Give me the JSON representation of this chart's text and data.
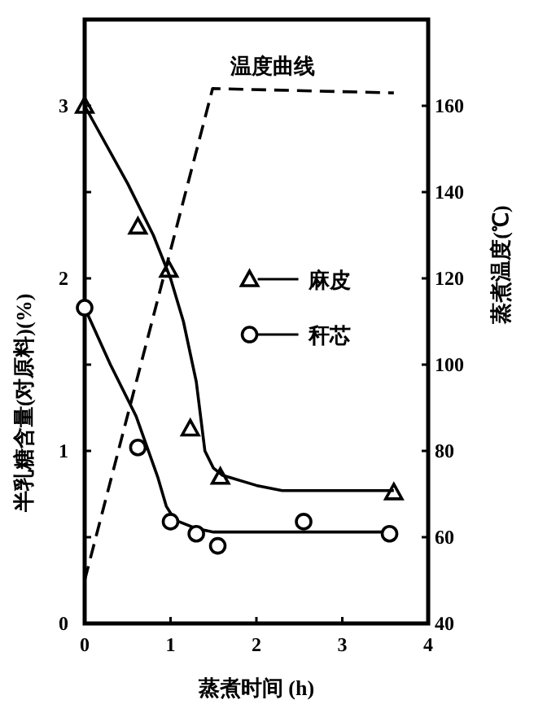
{
  "chart_data": {
    "type": "line",
    "xlabel": "蒸煮时间 (h)",
    "ylabel": "半乳糖含量(对原料)(%)",
    "y2label": "蒸煮温度(℃)",
    "xlim": [
      0,
      4
    ],
    "xticks": [
      0,
      1,
      2,
      3,
      4
    ],
    "ylim": [
      0,
      3.5
    ],
    "yticks": [
      0,
      {
        "value": 0.5,
        "label": null
      },
      1,
      {
        "value": 1.5,
        "label": null
      },
      2,
      {
        "value": 2.5,
        "label": null
      },
      3
    ],
    "y2lim": [
      40,
      180
    ],
    "y2ticks": [
      40,
      60,
      80,
      100,
      120,
      140,
      160
    ],
    "legend": "right",
    "annotations": [
      "温度曲线"
    ],
    "series": [
      {
        "name": "麻皮",
        "type": "scatter",
        "marker": "triangle",
        "color": "#000000",
        "x": [
          0,
          0.62,
          0.98,
          1.23,
          1.58,
          3.6
        ],
        "values": [
          3.0,
          2.3,
          2.05,
          1.13,
          0.85,
          0.76
        ]
      },
      {
        "name": "秆芯",
        "type": "scatter",
        "marker": "circle",
        "color": "#000000",
        "x": [
          0,
          0.62,
          1.0,
          1.3,
          1.55,
          2.55,
          3.55
        ],
        "values": [
          1.83,
          1.02,
          0.59,
          0.52,
          0.45,
          0.59,
          0.52
        ]
      },
      {
        "type": "line",
        "line_style": "solid",
        "color": "#000000",
        "x": [
          0,
          0.5,
          0.8,
          1.0,
          1.15,
          1.3,
          1.4,
          1.5,
          1.6,
          2.0,
          2.3,
          3.6
        ],
        "values": [
          3.0,
          2.55,
          2.25,
          2.0,
          1.75,
          1.4,
          1.0,
          0.9,
          0.86,
          0.8,
          0.77,
          0.77
        ]
      },
      {
        "type": "line",
        "line_style": "solid",
        "color": "#000000",
        "x": [
          0,
          0.3,
          0.6,
          0.85,
          0.95,
          1.05,
          1.3,
          1.5,
          3.6
        ],
        "values": [
          1.83,
          1.5,
          1.2,
          0.85,
          0.68,
          0.6,
          0.55,
          0.53,
          0.53
        ]
      },
      {
        "type": "line",
        "line_style": "dashed",
        "axis": "y2",
        "color": "#000000",
        "x": [
          0,
          1.49,
          3.6
        ],
        "values": [
          50,
          164,
          163
        ]
      }
    ]
  }
}
